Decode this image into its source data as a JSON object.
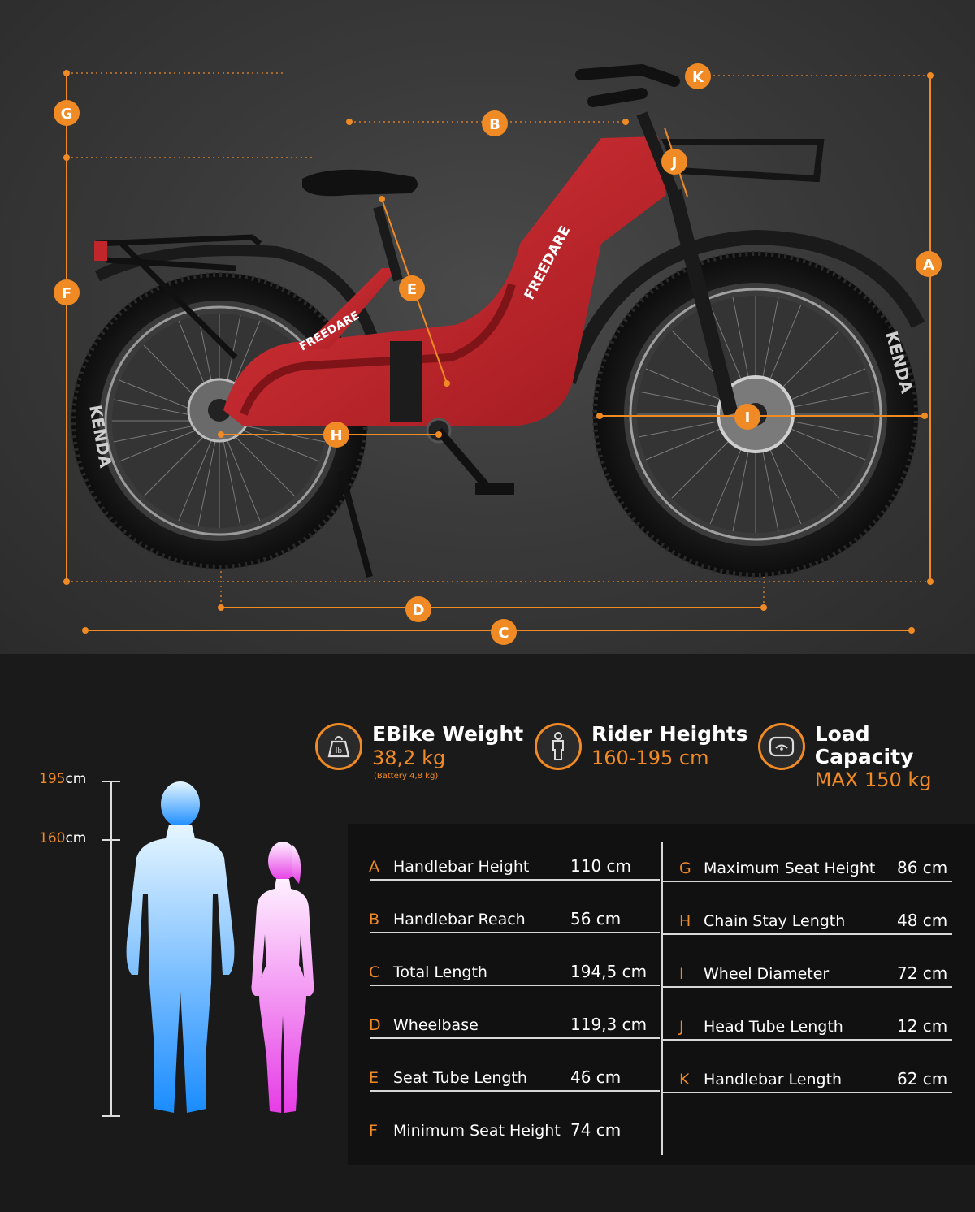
{
  "markers": {
    "A": "A",
    "B": "B",
    "C": "C",
    "D": "D",
    "E": "E",
    "F": "F",
    "G": "G",
    "H": "H",
    "I": "I",
    "J": "J",
    "K": "K"
  },
  "colors": {
    "accent": "#f08a24",
    "frame": "#c8262b",
    "background_top": "#3a3a3a",
    "background_bottom": "#1a1a1a",
    "male_gradient": [
      "#d8f0ff",
      "#1e90ff"
    ],
    "female_gradient": [
      "#ffe0ff",
      "#e040e0"
    ]
  },
  "bike_branding": {
    "brand_text": "FREEDARE",
    "tire_text": "KENDA"
  },
  "specs": {
    "weight": {
      "icon": "weight-icon",
      "title": "EBike Weight",
      "value": "38,2 kg",
      "note": "(Battery 4,8 kg)"
    },
    "rider": {
      "icon": "person-icon",
      "title": "Rider Heights",
      "value": "160-195 cm"
    },
    "load": {
      "icon": "load-icon",
      "title": "Load Capacity",
      "value": "MAX 150 kg"
    }
  },
  "height_scale": {
    "tall": {
      "num": "195",
      "unit": "cm"
    },
    "short": {
      "num": "160",
      "unit": "cm"
    }
  },
  "geometry_table": {
    "left": [
      {
        "letter": "A",
        "label": "Handlebar Height",
        "value": "110 cm"
      },
      {
        "letter": "B",
        "label": "Handlebar Reach",
        "value": "56 cm"
      },
      {
        "letter": "C",
        "label": "Total Length",
        "value": "194,5 cm"
      },
      {
        "letter": "D",
        "label": "Wheelbase",
        "value": "119,3 cm"
      },
      {
        "letter": "E",
        "label": "Seat Tube Length",
        "value": "46 cm"
      },
      {
        "letter": "F",
        "label": "Minimum Seat Height",
        "value": "74 cm"
      }
    ],
    "right": [
      {
        "letter": "G",
        "label": "Maximum Seat Height",
        "value": "86 cm"
      },
      {
        "letter": "H",
        "label": "Chain Stay Length",
        "value": "48 cm"
      },
      {
        "letter": "I",
        "label": "Wheel Diameter",
        "value": "72 cm"
      },
      {
        "letter": "J",
        "label": "Head Tube Length",
        "value": "12 cm"
      },
      {
        "letter": "K",
        "label": "Handlebar Length",
        "value": "62 cm"
      }
    ]
  }
}
